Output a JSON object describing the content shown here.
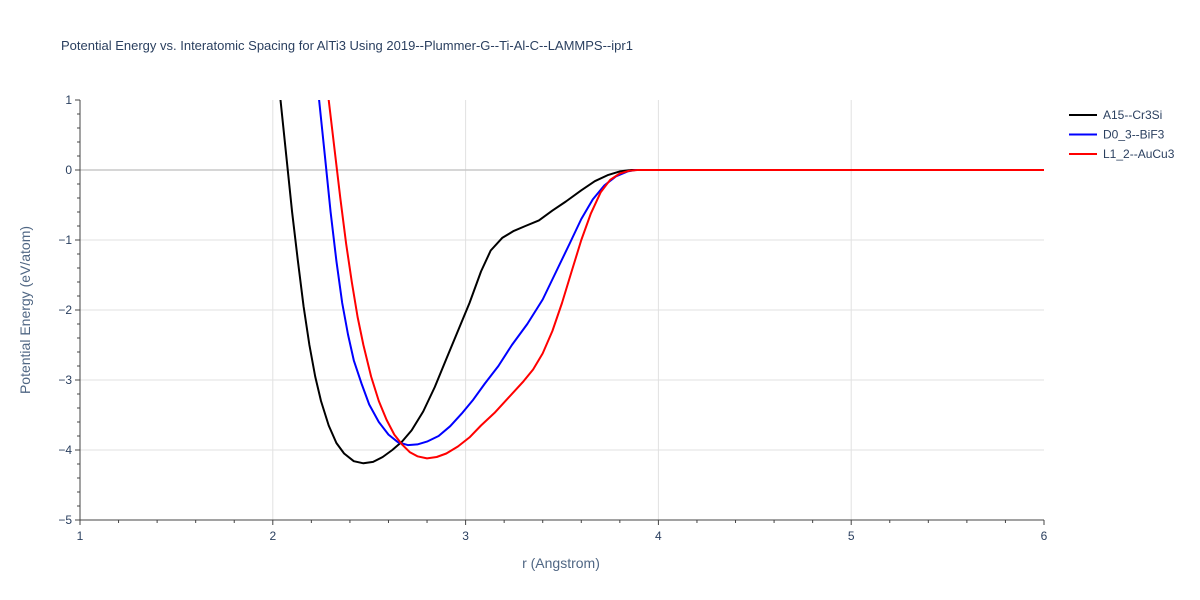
{
  "chart_data": {
    "type": "line",
    "title": "Potential Energy vs. Interatomic Spacing for AlTi3 Using 2019--Plummer-G--Ti-Al-C--LAMMPS--ipr1",
    "xlabel": "r (Angstrom)",
    "ylabel": "Potential Energy (eV/atom)",
    "xlim": [
      1,
      6
    ],
    "ylim": [
      -5,
      1
    ],
    "xticks": [
      1,
      2,
      3,
      4,
      5,
      6
    ],
    "xtick_labels": [
      "1",
      "2",
      "3",
      "4",
      "5",
      "6"
    ],
    "yticks": [
      -5,
      -4,
      -3,
      -2,
      -1,
      0,
      1
    ],
    "ytick_labels": [
      "−5",
      "−4",
      "−3",
      "−2",
      "−1",
      "0",
      "1"
    ],
    "grid": true,
    "legend_position": "top-right",
    "series": [
      {
        "name": "A15--Cr3Si",
        "color": "#000000",
        "points": [
          [
            2.04,
            1.0
          ],
          [
            2.07,
            0.2
          ],
          [
            2.1,
            -0.6
          ],
          [
            2.13,
            -1.3
          ],
          [
            2.16,
            -1.95
          ],
          [
            2.19,
            -2.5
          ],
          [
            2.22,
            -2.95
          ],
          [
            2.25,
            -3.3
          ],
          [
            2.29,
            -3.65
          ],
          [
            2.33,
            -3.9
          ],
          [
            2.37,
            -4.05
          ],
          [
            2.42,
            -4.16
          ],
          [
            2.47,
            -4.19
          ],
          [
            2.52,
            -4.17
          ],
          [
            2.57,
            -4.1
          ],
          [
            2.62,
            -4.0
          ],
          [
            2.67,
            -3.88
          ],
          [
            2.72,
            -3.72
          ],
          [
            2.78,
            -3.45
          ],
          [
            2.84,
            -3.1
          ],
          [
            2.9,
            -2.7
          ],
          [
            2.96,
            -2.3
          ],
          [
            3.02,
            -1.9
          ],
          [
            3.08,
            -1.45
          ],
          [
            3.13,
            -1.15
          ],
          [
            3.19,
            -0.97
          ],
          [
            3.25,
            -0.87
          ],
          [
            3.31,
            -0.8
          ],
          [
            3.38,
            -0.72
          ],
          [
            3.45,
            -0.58
          ],
          [
            3.52,
            -0.45
          ],
          [
            3.6,
            -0.29
          ],
          [
            3.67,
            -0.16
          ],
          [
            3.74,
            -0.07
          ],
          [
            3.8,
            -0.02
          ],
          [
            3.86,
            0.0
          ],
          [
            4.0,
            0.0
          ],
          [
            5.0,
            0.0
          ],
          [
            6.0,
            0.0
          ]
        ]
      },
      {
        "name": "D0_3--BiF3",
        "color": "#0000ff",
        "points": [
          [
            2.24,
            1.0
          ],
          [
            2.27,
            0.2
          ],
          [
            2.3,
            -0.6
          ],
          [
            2.33,
            -1.3
          ],
          [
            2.36,
            -1.9
          ],
          [
            2.39,
            -2.35
          ],
          [
            2.42,
            -2.72
          ],
          [
            2.46,
            -3.05
          ],
          [
            2.5,
            -3.35
          ],
          [
            2.55,
            -3.6
          ],
          [
            2.6,
            -3.78
          ],
          [
            2.65,
            -3.89
          ],
          [
            2.7,
            -3.93
          ],
          [
            2.75,
            -3.92
          ],
          [
            2.8,
            -3.88
          ],
          [
            2.86,
            -3.8
          ],
          [
            2.92,
            -3.66
          ],
          [
            2.98,
            -3.48
          ],
          [
            3.04,
            -3.28
          ],
          [
            3.1,
            -3.05
          ],
          [
            3.17,
            -2.8
          ],
          [
            3.24,
            -2.5
          ],
          [
            3.32,
            -2.2
          ],
          [
            3.4,
            -1.85
          ],
          [
            3.47,
            -1.45
          ],
          [
            3.54,
            -1.05
          ],
          [
            3.6,
            -0.7
          ],
          [
            3.66,
            -0.42
          ],
          [
            3.72,
            -0.22
          ],
          [
            3.78,
            -0.09
          ],
          [
            3.84,
            -0.02
          ],
          [
            3.88,
            0.0
          ],
          [
            4.0,
            0.0
          ],
          [
            5.0,
            0.0
          ],
          [
            6.0,
            0.0
          ]
        ]
      },
      {
        "name": "L1_2--AuCu3",
        "color": "#ff0000",
        "points": [
          [
            2.29,
            1.0
          ],
          [
            2.32,
            0.3
          ],
          [
            2.35,
            -0.4
          ],
          [
            2.38,
            -1.05
          ],
          [
            2.41,
            -1.6
          ],
          [
            2.44,
            -2.1
          ],
          [
            2.47,
            -2.5
          ],
          [
            2.51,
            -2.95
          ],
          [
            2.55,
            -3.3
          ],
          [
            2.59,
            -3.57
          ],
          [
            2.63,
            -3.78
          ],
          [
            2.67,
            -3.92
          ],
          [
            2.71,
            -4.03
          ],
          [
            2.75,
            -4.09
          ],
          [
            2.8,
            -4.12
          ],
          [
            2.85,
            -4.1
          ],
          [
            2.9,
            -4.05
          ],
          [
            2.96,
            -3.95
          ],
          [
            3.02,
            -3.82
          ],
          [
            3.08,
            -3.65
          ],
          [
            3.15,
            -3.47
          ],
          [
            3.22,
            -3.26
          ],
          [
            3.3,
            -3.02
          ],
          [
            3.35,
            -2.85
          ],
          [
            3.4,
            -2.62
          ],
          [
            3.45,
            -2.3
          ],
          [
            3.5,
            -1.9
          ],
          [
            3.55,
            -1.45
          ],
          [
            3.6,
            -1.0
          ],
          [
            3.65,
            -0.62
          ],
          [
            3.7,
            -0.32
          ],
          [
            3.75,
            -0.14
          ],
          [
            3.8,
            -0.05
          ],
          [
            3.85,
            -0.01
          ],
          [
            3.89,
            0.0
          ],
          [
            4.0,
            0.0
          ],
          [
            5.0,
            0.0
          ],
          [
            6.0,
            0.0
          ]
        ]
      }
    ]
  }
}
